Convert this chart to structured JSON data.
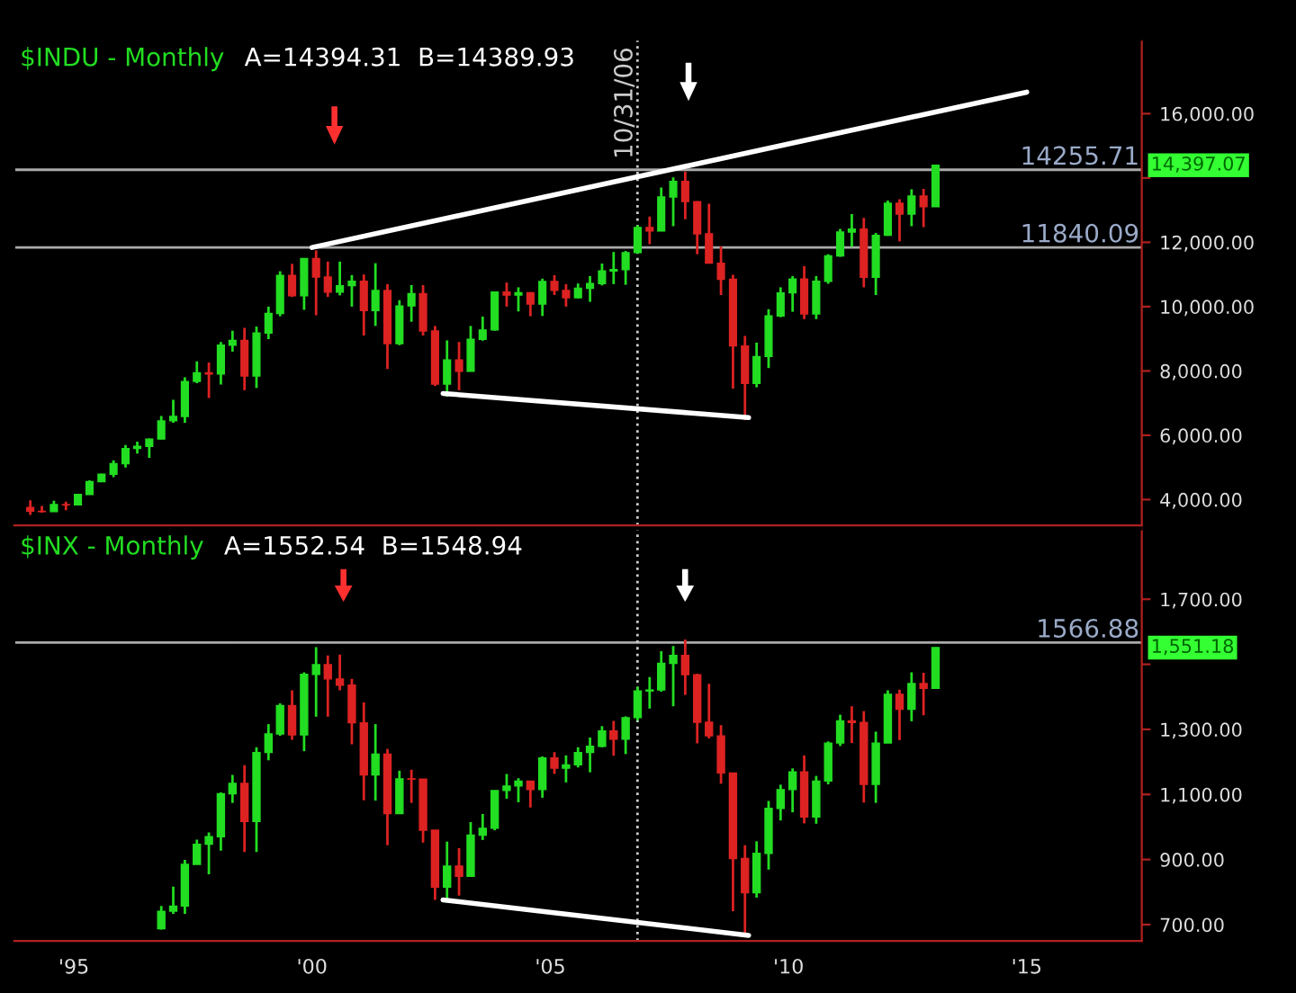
{
  "chart_data": [
    {
      "type": "candlestick",
      "title": "$INDU - Monthly",
      "subtitle": "A=14394.31  B=14389.93",
      "x": [
        "1994-02",
        "1994-05",
        "1994-08",
        "1994-11",
        "1995-02",
        "1995-05",
        "1995-08",
        "1995-11",
        "1996-02",
        "1996-05",
        "1996-08",
        "1996-11",
        "1997-02",
        "1997-05",
        "1997-08",
        "1997-11",
        "1998-02",
        "1998-05",
        "1998-08",
        "1998-11",
        "1999-02",
        "1999-05",
        "1999-08",
        "1999-11",
        "2000-02",
        "2000-05",
        "2000-08",
        "2000-11",
        "2001-02",
        "2001-05",
        "2001-08",
        "2001-11",
        "2002-02",
        "2002-05",
        "2002-08",
        "2002-11",
        "2003-02",
        "2003-05",
        "2003-08",
        "2003-11",
        "2004-02",
        "2004-05",
        "2004-08",
        "2004-11",
        "2005-02",
        "2005-05",
        "2005-08",
        "2005-11",
        "2006-02",
        "2006-05",
        "2006-08",
        "2006-11",
        "2007-02",
        "2007-05",
        "2007-08",
        "2007-11",
        "2008-02",
        "2008-05",
        "2008-08",
        "2008-11",
        "2009-02",
        "2009-05",
        "2009-08",
        "2009-11",
        "2010-02",
        "2010-05",
        "2010-08",
        "2010-11",
        "2011-02",
        "2011-05",
        "2011-08",
        "2011-11",
        "2012-02",
        "2012-05",
        "2012-08",
        "2012-11",
        "2013-02"
      ],
      "ohlc": [
        [
          3754,
          3978,
          3520,
          3636
        ],
        [
          3636,
          3800,
          3590,
          3625
        ],
        [
          3625,
          3960,
          3620,
          3843
        ],
        [
          3843,
          3936,
          3670,
          3834
        ],
        [
          3834,
          4170,
          3830,
          4158
        ],
        [
          4158,
          4600,
          4150,
          4556
        ],
        [
          4556,
          4800,
          4540,
          4789
        ],
        [
          4789,
          5220,
          4700,
          5117
        ],
        [
          5117,
          5700,
          5000,
          5587
        ],
        [
          5587,
          5800,
          5430,
          5654
        ],
        [
          5654,
          5900,
          5300,
          5882
        ],
        [
          5882,
          6600,
          5880,
          6448
        ],
        [
          6448,
          7100,
          6390,
          6583
        ],
        [
          6583,
          7800,
          6390,
          7673
        ],
        [
          7673,
          8300,
          7620,
          7945
        ],
        [
          7945,
          8260,
          7160,
          7908
        ],
        [
          7908,
          8900,
          7580,
          8800
        ],
        [
          8800,
          9250,
          8600,
          8952
        ],
        [
          8952,
          9340,
          7400,
          7843
        ],
        [
          7843,
          9380,
          7470,
          9181
        ],
        [
          9181,
          10000,
          8990,
          9786
        ],
        [
          9786,
          11100,
          9700,
          10971
        ],
        [
          10971,
          11330,
          10300,
          10337
        ],
        [
          10337,
          11500,
          9900,
          11497
        ],
        [
          11497,
          11750,
          9730,
          10922
        ],
        [
          10922,
          11400,
          10300,
          10448
        ],
        [
          10448,
          11400,
          10350,
          10651
        ],
        [
          10651,
          10980,
          10000,
          10787
        ],
        [
          10787,
          11000,
          9100,
          9879
        ],
        [
          9879,
          11350,
          9400,
          10502
        ],
        [
          10502,
          10700,
          8060,
          8848
        ],
        [
          8848,
          10200,
          8800,
          10021
        ],
        [
          10021,
          10670,
          9530,
          10404
        ],
        [
          10404,
          10670,
          9100,
          9243
        ],
        [
          9243,
          9400,
          7530,
          7592
        ],
        [
          7592,
          8950,
          7200,
          8342
        ],
        [
          8342,
          8900,
          7400,
          7992
        ],
        [
          7992,
          9400,
          7990,
          8985
        ],
        [
          8985,
          9690,
          8940,
          9275
        ],
        [
          9275,
          10460,
          9250,
          10454
        ],
        [
          10454,
          10750,
          10000,
          10358
        ],
        [
          10358,
          10600,
          9850,
          10435
        ],
        [
          10435,
          10450,
          9700,
          10080
        ],
        [
          10080,
          10870,
          9710,
          10783
        ],
        [
          10783,
          10980,
          10360,
          10504
        ],
        [
          10504,
          10700,
          10000,
          10275
        ],
        [
          10275,
          10720,
          10260,
          10569
        ],
        [
          10569,
          10950,
          10150,
          10718
        ],
        [
          10718,
          11340,
          10660,
          11109
        ],
        [
          11109,
          11700,
          10700,
          11150
        ],
        [
          11150,
          11730,
          10680,
          11679
        ],
        [
          11679,
          12530,
          11650,
          12463
        ],
        [
          12463,
          12800,
          11940,
          12354
        ],
        [
          12354,
          13700,
          12350,
          13409
        ],
        [
          13409,
          14020,
          12500,
          13896
        ],
        [
          13896,
          14200,
          12720,
          13265
        ],
        [
          13265,
          13280,
          11630,
          12263
        ],
        [
          12263,
          13200,
          11340,
          11350
        ],
        [
          11350,
          11870,
          10360,
          10851
        ],
        [
          10851,
          10990,
          7450,
          8776
        ],
        [
          8776,
          9090,
          6470,
          7609
        ],
        [
          7609,
          8880,
          7490,
          8447
        ],
        [
          8447,
          9920,
          8090,
          9712
        ],
        [
          9712,
          10600,
          9670,
          10428
        ],
        [
          10428,
          10950,
          9840,
          10857
        ],
        [
          10857,
          11260,
          9610,
          9774
        ],
        [
          9774,
          10950,
          9610,
          10788
        ],
        [
          10788,
          11630,
          10710,
          11578
        ],
        [
          11578,
          12420,
          11550,
          12320
        ],
        [
          12320,
          12880,
          11860,
          12414
        ],
        [
          12414,
          12760,
          10600,
          10913
        ],
        [
          10913,
          12290,
          10360,
          12218
        ],
        [
          12218,
          13300,
          12200,
          13212
        ],
        [
          13212,
          13340,
          12030,
          12880
        ],
        [
          12880,
          13650,
          12500,
          13437
        ],
        [
          13437,
          13660,
          12470,
          13104
        ],
        [
          13104,
          14400,
          13100,
          14397.07
        ]
      ],
      "colors": [
        "#dd2222",
        "#dd2222",
        "#22dd22",
        "#dd2222",
        "#22dd22",
        "#22dd22",
        "#22dd22",
        "#22dd22",
        "#22dd22",
        "#22dd22",
        "#22dd22",
        "#22dd22",
        "#22dd22",
        "#22dd22",
        "#22dd22",
        "#dd2222",
        "#22dd22",
        "#22dd22",
        "#dd2222",
        "#22dd22",
        "#22dd22",
        "#22dd22",
        "#dd2222",
        "#22dd22",
        "#dd2222",
        "#dd2222",
        "#22dd22",
        "#22dd22",
        "#dd2222",
        "#22dd22",
        "#dd2222",
        "#22dd22",
        "#22dd22",
        "#dd2222",
        "#dd2222",
        "#22dd22",
        "#dd2222",
        "#22dd22",
        "#22dd22",
        "#22dd22",
        "#dd2222",
        "#22dd22",
        "#dd2222",
        "#22dd22",
        "#dd2222",
        "#dd2222",
        "#22dd22",
        "#22dd22",
        "#22dd22",
        "#22dd22",
        "#22dd22",
        "#22dd22",
        "#dd2222",
        "#22dd22",
        "#22dd22",
        "#dd2222",
        "#dd2222",
        "#dd2222",
        "#dd2222",
        "#dd2222",
        "#dd2222",
        "#22dd22",
        "#22dd22",
        "#22dd22",
        "#22dd22",
        "#dd2222",
        "#22dd22",
        "#22dd22",
        "#22dd22",
        "#22dd22",
        "#dd2222",
        "#22dd22",
        "#22dd22",
        "#dd2222",
        "#22dd22",
        "#dd2222",
        "#22dd22"
      ],
      "series": [
        {
          "type": "line",
          "color": "#ffffff",
          "x": [
            "2000-01",
            "2015-01"
          ],
          "values": [
            11840,
            16670
          ]
        },
        {
          "type": "line",
          "color": "#ffffff",
          "x": [
            "2002-10",
            "2009-03"
          ],
          "values": [
            7300,
            6550
          ]
        }
      ],
      "xlim": [
        "1993-10",
        "2017-06"
      ],
      "ylim": [
        3200,
        18300
      ],
      "yticks": [
        {
          "value": 4000,
          "label": "4,000.00"
        },
        {
          "value": 6000,
          "label": "6,000.00"
        },
        {
          "value": 8000,
          "label": "8,000.00"
        },
        {
          "value": 10000,
          "label": "10,000.00"
        },
        {
          "value": 12000,
          "label": "12,000.00"
        },
        {
          "value": 14000,
          "label": null
        },
        {
          "value": 16000,
          "label": "16,000.00"
        }
      ],
      "tick_labels": "y",
      "ref_lines": [
        {
          "axis": "y",
          "value": 14255.71,
          "label": "14255.71",
          "color": "#aaaaaa"
        },
        {
          "axis": "y",
          "value": 11840.09,
          "label": "11840.09",
          "color": "#aaaaaa"
        },
        {
          "axis": "x",
          "value": "2006-10-31",
          "label": "10/31/06",
          "color": "#cccccc",
          "line_style": "dotted"
        }
      ],
      "annotations": [
        "14,397.07"
      ]
    },
    {
      "type": "candlestick",
      "title": "$INX - Monthly",
      "subtitle": "A=1552.54  B=1548.94",
      "x": [
        "1996-11",
        "1997-02",
        "1997-05",
        "1997-08",
        "1997-11",
        "1998-02",
        "1998-05",
        "1998-08",
        "1998-11",
        "1999-02",
        "1999-05",
        "1999-08",
        "1999-11",
        "2000-02",
        "2000-05",
        "2000-08",
        "2000-11",
        "2001-02",
        "2001-05",
        "2001-08",
        "2001-11",
        "2002-02",
        "2002-05",
        "2002-08",
        "2002-11",
        "2003-02",
        "2003-05",
        "2003-08",
        "2003-11",
        "2004-02",
        "2004-05",
        "2004-08",
        "2004-11",
        "2005-02",
        "2005-05",
        "2005-08",
        "2005-11",
        "2006-02",
        "2006-05",
        "2006-08",
        "2006-11",
        "2007-02",
        "2007-05",
        "2007-08",
        "2007-11",
        "2008-02",
        "2008-05",
        "2008-08",
        "2008-11",
        "2009-02",
        "2009-05",
        "2009-08",
        "2009-11",
        "2010-02",
        "2010-05",
        "2010-08",
        "2010-11",
        "2011-02",
        "2011-05",
        "2011-08",
        "2011-11",
        "2012-02",
        "2012-05",
        "2012-08",
        "2012-11",
        "2013-02"
      ],
      "ohlc": [
        [
          687,
          757,
          685,
          741
        ],
        [
          741,
          817,
          733,
          757
        ],
        [
          757,
          899,
          733,
          885
        ],
        [
          885,
          961,
          885,
          947
        ],
        [
          947,
          983,
          855,
          970
        ],
        [
          970,
          1106,
          927,
          1102
        ],
        [
          1102,
          1160,
          1074,
          1134
        ],
        [
          1134,
          1190,
          923,
          1017
        ],
        [
          1017,
          1245,
          923,
          1229
        ],
        [
          1229,
          1316,
          1205,
          1286
        ],
        [
          1286,
          1380,
          1280,
          1373
        ],
        [
          1373,
          1420,
          1268,
          1283
        ],
        [
          1283,
          1475,
          1233,
          1469
        ],
        [
          1469,
          1553,
          1339,
          1499
        ],
        [
          1499,
          1527,
          1339,
          1455
        ],
        [
          1455,
          1530,
          1420,
          1436
        ],
        [
          1436,
          1455,
          1254,
          1320
        ],
        [
          1320,
          1383,
          1082,
          1160
        ],
        [
          1160,
          1316,
          1081,
          1224
        ],
        [
          1224,
          1240,
          944,
          1041
        ],
        [
          1041,
          1173,
          1040,
          1148
        ],
        [
          1148,
          1176,
          1074,
          1147
        ],
        [
          1147,
          1147,
          952,
          990
        ],
        [
          990,
          990,
          776,
          815
        ],
        [
          815,
          955,
          768,
          880
        ],
        [
          880,
          935,
          789,
          848
        ],
        [
          848,
          1015,
          848,
          975
        ],
        [
          975,
          1040,
          960,
          996
        ],
        [
          996,
          1112,
          990,
          1112
        ],
        [
          1112,
          1163,
          1087,
          1126
        ],
        [
          1126,
          1150,
          1076,
          1141
        ],
        [
          1141,
          1141,
          1060,
          1115
        ],
        [
          1115,
          1217,
          1090,
          1212
        ],
        [
          1212,
          1230,
          1163,
          1181
        ],
        [
          1181,
          1220,
          1137,
          1191
        ],
        [
          1191,
          1245,
          1183,
          1229
        ],
        [
          1229,
          1275,
          1168,
          1248
        ],
        [
          1248,
          1310,
          1245,
          1295
        ],
        [
          1295,
          1326,
          1219,
          1270
        ],
        [
          1270,
          1340,
          1224,
          1336
        ],
        [
          1336,
          1431,
          1327,
          1418
        ],
        [
          1418,
          1461,
          1364,
          1421
        ],
        [
          1421,
          1540,
          1416,
          1503
        ],
        [
          1503,
          1556,
          1371,
          1527
        ],
        [
          1527,
          1576,
          1406,
          1468
        ],
        [
          1468,
          1471,
          1257,
          1322
        ],
        [
          1322,
          1440,
          1272,
          1280
        ],
        [
          1280,
          1313,
          1133,
          1166
        ],
        [
          1166,
          1167,
          741,
          903
        ],
        [
          903,
          944,
          667,
          798
        ],
        [
          798,
          956,
          783,
          919
        ],
        [
          919,
          1080,
          869,
          1057
        ],
        [
          1057,
          1130,
          1020,
          1115
        ],
        [
          1115,
          1180,
          1045,
          1169
        ],
        [
          1169,
          1220,
          1011,
          1031
        ],
        [
          1031,
          1157,
          1010,
          1141
        ],
        [
          1141,
          1263,
          1131,
          1258
        ],
        [
          1258,
          1345,
          1249,
          1326
        ],
        [
          1326,
          1371,
          1258,
          1321
        ],
        [
          1321,
          1356,
          1075,
          1131
        ],
        [
          1131,
          1293,
          1074,
          1258
        ],
        [
          1258,
          1420,
          1258,
          1408
        ],
        [
          1408,
          1422,
          1267,
          1362
        ],
        [
          1362,
          1475,
          1325,
          1441
        ],
        [
          1441,
          1474,
          1343,
          1426
        ],
        [
          1426,
          1552,
          1426,
          1551.18
        ]
      ],
      "colors": [
        "#22dd22",
        "#22dd22",
        "#22dd22",
        "#22dd22",
        "#22dd22",
        "#22dd22",
        "#22dd22",
        "#dd2222",
        "#22dd22",
        "#22dd22",
        "#22dd22",
        "#dd2222",
        "#22dd22",
        "#22dd22",
        "#dd2222",
        "#dd2222",
        "#dd2222",
        "#dd2222",
        "#22dd22",
        "#dd2222",
        "#22dd22",
        "#dd2222",
        "#dd2222",
        "#dd2222",
        "#22dd22",
        "#dd2222",
        "#22dd22",
        "#22dd22",
        "#22dd22",
        "#22dd22",
        "#22dd22",
        "#dd2222",
        "#22dd22",
        "#dd2222",
        "#22dd22",
        "#22dd22",
        "#22dd22",
        "#22dd22",
        "#dd2222",
        "#22dd22",
        "#22dd22",
        "#22dd22",
        "#22dd22",
        "#22dd22",
        "#dd2222",
        "#dd2222",
        "#dd2222",
        "#dd2222",
        "#dd2222",
        "#dd2222",
        "#22dd22",
        "#22dd22",
        "#22dd22",
        "#22dd22",
        "#dd2222",
        "#22dd22",
        "#22dd22",
        "#22dd22",
        "#dd2222",
        "#dd2222",
        "#22dd22",
        "#22dd22",
        "#dd2222",
        "#22dd22",
        "#dd2222",
        "#22dd22"
      ],
      "series": [
        {
          "type": "line",
          "color": "#ffffff",
          "x": [
            "2002-10",
            "2009-03"
          ],
          "values": [
            776,
            667
          ]
        }
      ],
      "xlim": [
        "1993-10",
        "2017-06"
      ],
      "ylim": [
        650,
        1915
      ],
      "xticks": [
        {
          "value": "1995-01",
          "label": "'95"
        },
        {
          "value": "2000-01",
          "label": "'00"
        },
        {
          "value": "2005-01",
          "label": "'05"
        },
        {
          "value": "2010-01",
          "label": "'10"
        },
        {
          "value": "2015-01",
          "label": "'15"
        }
      ],
      "yticks": [
        {
          "value": 700,
          "label": "700.00"
        },
        {
          "value": 900,
          "label": "900.00"
        },
        {
          "value": 1100,
          "label": "1,100.00"
        },
        {
          "value": 1300,
          "label": "1,300.00"
        },
        {
          "value": 1500,
          "label": null
        },
        {
          "value": 1700,
          "label": "1,700.00"
        }
      ],
      "ref_lines": [
        {
          "axis": "y",
          "value": 1566.88,
          "label": "1566.88",
          "color": "#aaaaaa"
        },
        {
          "axis": "x",
          "value": "2006-10-31",
          "color": "#cccccc",
          "line_style": "dotted"
        }
      ],
      "annotations": [
        "1,551.18"
      ]
    }
  ]
}
